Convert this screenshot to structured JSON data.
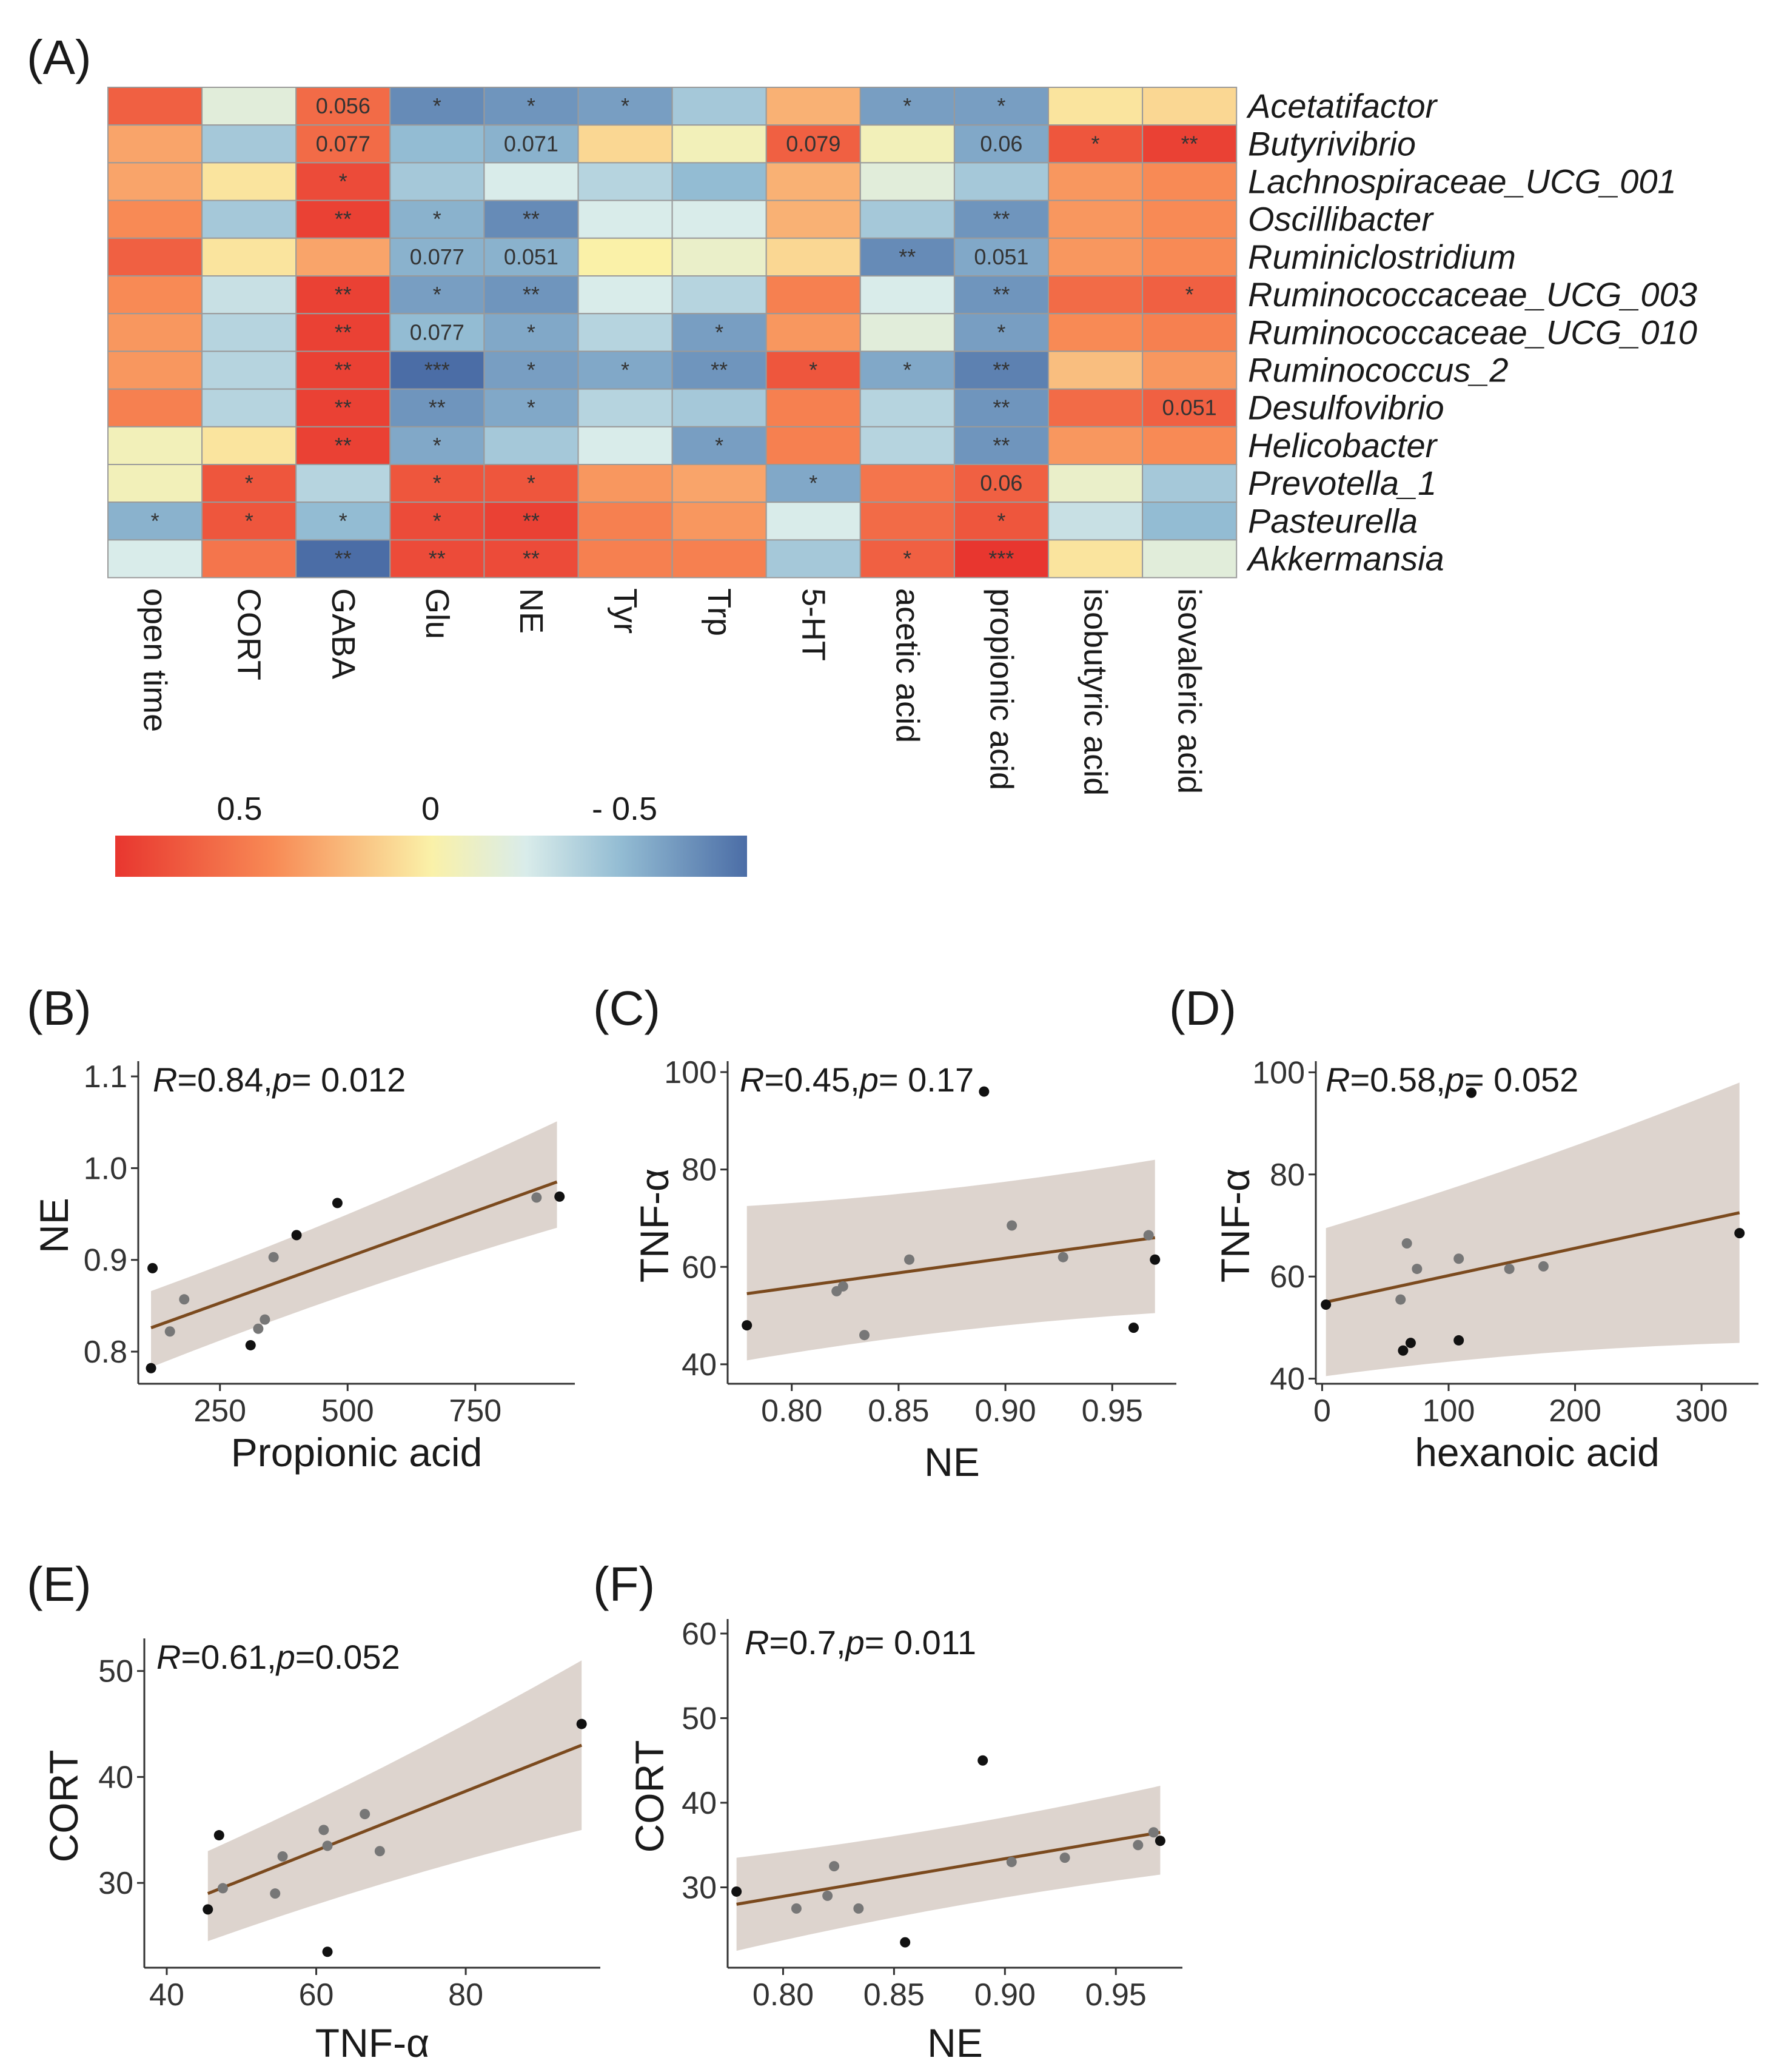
{
  "figure": {
    "colors": {
      "positive": "#e8362f",
      "neutral": "#faf1a8",
      "negative": "#4b6da6",
      "fit_line": "#7b4a1e",
      "ci_band": "#d9cfc9",
      "point_dark": "#111111",
      "point_grey": "#777777",
      "cell_border": "#9a9a9a"
    }
  },
  "chart_data": [
    {
      "panel": "(A)",
      "type": "heatmap",
      "rows": [
        "Acetatifactor",
        "Butyrivibrio",
        "Lachnospiraceae_UCG_001",
        "Oscillibacter",
        "Ruminiclostridium",
        "Ruminococcaceae_UCG_003",
        "Ruminococcaceae_UCG_010",
        "Ruminococcus_2",
        "Desulfovibrio",
        "Helicobacter",
        "Prevotella_1",
        "Pasteurella",
        "Akkermansia"
      ],
      "columns": [
        "open time",
        "CORT",
        "GABA",
        "Glu",
        "NE",
        "Tyr",
        "Trp",
        "5-HT",
        "acetic acid",
        "propionic acid",
        "isobutyric acid",
        "isovaleric acid"
      ],
      "values": [
        [
          0.6,
          -0.15,
          0.55,
          -0.65,
          -0.6,
          -0.55,
          -0.35,
          0.25,
          -0.55,
          -0.55,
          0.05,
          0.1
        ],
        [
          0.3,
          -0.35,
          0.55,
          -0.4,
          -0.45,
          0.1,
          -0.05,
          0.6,
          -0.05,
          -0.5,
          0.65,
          0.75
        ],
        [
          0.3,
          0.05,
          0.7,
          -0.35,
          -0.2,
          -0.3,
          -0.4,
          0.25,
          -0.15,
          -0.35,
          0.35,
          0.4
        ],
        [
          0.4,
          -0.35,
          0.75,
          -0.45,
          -0.65,
          -0.2,
          -0.2,
          0.25,
          -0.35,
          -0.6,
          0.35,
          0.4
        ],
        [
          0.6,
          0.05,
          0.3,
          -0.45,
          -0.45,
          0.0,
          -0.1,
          0.1,
          -0.65,
          -0.5,
          0.35,
          0.4
        ],
        [
          0.4,
          -0.25,
          0.75,
          -0.55,
          -0.6,
          -0.2,
          -0.3,
          0.45,
          -0.2,
          -0.6,
          0.55,
          0.6
        ],
        [
          0.35,
          -0.3,
          0.75,
          -0.4,
          -0.5,
          -0.3,
          -0.55,
          0.35,
          -0.15,
          -0.55,
          0.4,
          0.45
        ],
        [
          0.35,
          -0.3,
          0.75,
          -0.8,
          -0.55,
          -0.5,
          -0.6,
          0.65,
          -0.5,
          -0.7,
          0.2,
          0.35
        ],
        [
          0.45,
          -0.3,
          0.75,
          -0.6,
          -0.5,
          -0.3,
          -0.35,
          0.45,
          -0.3,
          -0.6,
          0.55,
          0.6
        ],
        [
          -0.05,
          0.05,
          0.75,
          -0.5,
          -0.35,
          -0.2,
          -0.55,
          0.45,
          -0.3,
          -0.6,
          0.35,
          0.4
        ],
        [
          -0.05,
          0.65,
          -0.3,
          0.65,
          0.65,
          0.35,
          0.3,
          -0.5,
          0.5,
          0.6,
          -0.1,
          -0.35
        ],
        [
          -0.45,
          0.65,
          -0.4,
          0.7,
          0.75,
          0.45,
          0.35,
          -0.2,
          0.55,
          0.65,
          -0.25,
          -0.4
        ],
        [
          -0.2,
          0.5,
          -0.8,
          0.7,
          0.7,
          0.45,
          0.45,
          -0.35,
          0.6,
          0.8,
          0.05,
          -0.15
        ]
      ],
      "annotations": [
        [
          "",
          "",
          "0.056",
          "*",
          "*",
          "*",
          "",
          "",
          "*",
          "*",
          "",
          ""
        ],
        [
          "",
          "",
          "0.077",
          "",
          "0.071",
          "",
          "",
          "0.079",
          "",
          "0.06",
          "*",
          "**"
        ],
        [
          "",
          "",
          "*",
          "",
          "",
          "",
          "",
          "",
          "",
          "",
          "",
          ""
        ],
        [
          "",
          "",
          "**",
          "*",
          "**",
          "",
          "",
          "",
          "",
          "**",
          "",
          ""
        ],
        [
          "",
          "",
          "",
          "0.077",
          "0.051",
          "",
          "",
          "",
          "**",
          "0.051",
          "",
          ""
        ],
        [
          "",
          "",
          "**",
          "*",
          "**",
          "",
          "",
          "",
          "",
          "**",
          "",
          "*"
        ],
        [
          "",
          "",
          "**",
          "0.077",
          "*",
          "",
          "*",
          "",
          "",
          "*",
          "",
          ""
        ],
        [
          "",
          "",
          "**",
          "***",
          "*",
          "*",
          "**",
          "*",
          "*",
          "**",
          "",
          ""
        ],
        [
          "",
          "",
          "**",
          "**",
          "*",
          "",
          "",
          "",
          "",
          "**",
          "",
          "0.051"
        ],
        [
          "",
          "",
          "**",
          "*",
          "",
          "",
          "*",
          "",
          "",
          "**",
          "",
          ""
        ],
        [
          "",
          "*",
          "",
          "*",
          "*",
          "",
          "",
          "*",
          "",
          "0.06",
          "",
          ""
        ],
        [
          "*",
          "*",
          "*",
          "*",
          "**",
          "",
          "",
          "",
          "",
          "*",
          "",
          ""
        ],
        [
          "",
          "",
          "**",
          "**",
          "**",
          "",
          "",
          "",
          "*",
          "***",
          "",
          ""
        ]
      ],
      "legend": {
        "ticks": [
          "0.5",
          "0",
          "- 0.5"
        ],
        "range": [
          0.8,
          -0.8
        ]
      }
    },
    {
      "panel": "(B)",
      "type": "scatter",
      "xlabel": "Propionic acid",
      "ylabel": "NE",
      "stat": {
        "r_label": "R",
        "r_value": "=0.84,",
        "p_label": "p",
        "p_value": "= 0.012"
      },
      "xlim": [
        90,
        945
      ],
      "ylim": [
        0.765,
        1.11
      ],
      "xticks": [
        250,
        500,
        750
      ],
      "yticks": [
        0.8,
        0.9,
        1.0,
        1.1
      ],
      "xtick_labels": [
        "250",
        "500",
        "750"
      ],
      "ytick_labels": [
        "0.8",
        "0.9",
        "1.0",
        "1.1"
      ],
      "fit": {
        "x": [
          115,
          910
        ],
        "y": [
          0.826,
          0.985
        ],
        "ci_low": [
          0.783,
          0.935
        ],
        "ci_high": [
          0.866,
          1.051
        ]
      },
      "points": [
        {
          "x": 115,
          "y": 0.782,
          "shade": "dark"
        },
        {
          "x": 118,
          "y": 0.891,
          "shade": "dark"
        },
        {
          "x": 152,
          "y": 0.822,
          "shade": "grey"
        },
        {
          "x": 180,
          "y": 0.857,
          "shade": "grey"
        },
        {
          "x": 310,
          "y": 0.807,
          "shade": "dark"
        },
        {
          "x": 325,
          "y": 0.825,
          "shade": "grey"
        },
        {
          "x": 338,
          "y": 0.835,
          "shade": "grey"
        },
        {
          "x": 355,
          "y": 0.903,
          "shade": "grey"
        },
        {
          "x": 400,
          "y": 0.927,
          "shade": "dark"
        },
        {
          "x": 480,
          "y": 0.962,
          "shade": "dark"
        },
        {
          "x": 870,
          "y": 0.968,
          "shade": "grey"
        },
        {
          "x": 915,
          "y": 0.969,
          "shade": "dark"
        }
      ]
    },
    {
      "panel": "(C)",
      "type": "scatter",
      "xlabel": "NE",
      "ylabel": "TNF-α",
      "stat": {
        "r_label": "R",
        "r_value": "=0.45,",
        "p_label": "p",
        "p_value": "= 0.17"
      },
      "xlim": [
        0.77,
        0.98
      ],
      "ylim": [
        36,
        101
      ],
      "xticks": [
        0.8,
        0.85,
        0.9,
        0.95
      ],
      "yticks": [
        40,
        60,
        80,
        100
      ],
      "xtick_labels": [
        "0.80",
        "0.85",
        "0.90",
        "0.95"
      ],
      "ytick_labels": [
        "40",
        "60",
        "80",
        "100"
      ],
      "fit": {
        "x": [
          0.779,
          0.97
        ],
        "y": [
          54.5,
          66
        ],
        "ci_low": [
          40.8,
          50.5
        ],
        "ci_high": [
          72.5,
          82
        ]
      },
      "points": [
        {
          "x": 0.779,
          "y": 48,
          "shade": "dark"
        },
        {
          "x": 0.821,
          "y": 55,
          "shade": "grey"
        },
        {
          "x": 0.824,
          "y": 56,
          "shade": "grey"
        },
        {
          "x": 0.834,
          "y": 46,
          "shade": "grey"
        },
        {
          "x": 0.855,
          "y": 61.5,
          "shade": "grey"
        },
        {
          "x": 0.89,
          "y": 96,
          "shade": "dark"
        },
        {
          "x": 0.903,
          "y": 68.5,
          "shade": "grey"
        },
        {
          "x": 0.927,
          "y": 62,
          "shade": "grey"
        },
        {
          "x": 0.96,
          "y": 47.5,
          "shade": "dark"
        },
        {
          "x": 0.967,
          "y": 66.5,
          "shade": "grey"
        },
        {
          "x": 0.97,
          "y": 61.5,
          "shade": "dark"
        }
      ]
    },
    {
      "panel": "(D)",
      "type": "scatter",
      "xlabel": "hexanoic acid",
      "ylabel": "TNF-α",
      "stat": {
        "r_label": "R",
        "r_value": "=0.58,",
        "p_label": "p",
        "p_value": "= 0.052"
      },
      "xlim": [
        -5,
        345
      ],
      "ylim": [
        39,
        101
      ],
      "xticks": [
        0,
        100,
        200,
        300
      ],
      "yticks": [
        40,
        60,
        80,
        100
      ],
      "xtick_labels": [
        "0",
        "100",
        "200",
        "300"
      ],
      "ytick_labels": [
        "40",
        "60",
        "80",
        "100"
      ],
      "fit": {
        "x": [
          3,
          330
        ],
        "y": [
          55,
          72.5
        ],
        "ci_low": [
          40.5,
          47
        ],
        "ci_high": [
          69.5,
          98
        ]
      },
      "points": [
        {
          "x": 3,
          "y": 54.5,
          "shade": "dark"
        },
        {
          "x": 62,
          "y": 55.5,
          "shade": "grey"
        },
        {
          "x": 64,
          "y": 45.5,
          "shade": "dark"
        },
        {
          "x": 67,
          "y": 66.5,
          "shade": "grey"
        },
        {
          "x": 70,
          "y": 47,
          "shade": "dark"
        },
        {
          "x": 75,
          "y": 61.5,
          "shade": "grey"
        },
        {
          "x": 108,
          "y": 63.5,
          "shade": "grey"
        },
        {
          "x": 108,
          "y": 47.5,
          "shade": "dark"
        },
        {
          "x": 118,
          "y": 96,
          "shade": "dark"
        },
        {
          "x": 148,
          "y": 61.5,
          "shade": "grey"
        },
        {
          "x": 175,
          "y": 62,
          "shade": "grey"
        },
        {
          "x": 330,
          "y": 68.5,
          "shade": "dark"
        }
      ]
    },
    {
      "panel": "(E)",
      "type": "scatter",
      "xlabel": "TNF-α",
      "ylabel": "CORT",
      "stat": {
        "r_label": "R",
        "r_value": "=0.61,",
        "p_label": "p",
        "p_value": "=0.052"
      },
      "xlim": [
        37,
        98
      ],
      "ylim": [
        22,
        52.5
      ],
      "xticks": [
        40,
        60,
        80
      ],
      "yticks": [
        30,
        40,
        50
      ],
      "xtick_labels": [
        "40",
        "60",
        "80"
      ],
      "ytick_labels": [
        "30",
        "40",
        "50"
      ],
      "fit": {
        "x": [
          45.5,
          95.5
        ],
        "y": [
          29,
          43
        ],
        "ci_low": [
          24.5,
          35
        ],
        "ci_high": [
          33,
          51
        ]
      },
      "points": [
        {
          "x": 45.5,
          "y": 27.5,
          "shade": "dark"
        },
        {
          "x": 47,
          "y": 34.5,
          "shade": "dark"
        },
        {
          "x": 47.5,
          "y": 29.5,
          "shade": "grey"
        },
        {
          "x": 54.5,
          "y": 29,
          "shade": "grey"
        },
        {
          "x": 55.5,
          "y": 32.5,
          "shade": "grey"
        },
        {
          "x": 61,
          "y": 35,
          "shade": "grey"
        },
        {
          "x": 61.5,
          "y": 33.5,
          "shade": "grey"
        },
        {
          "x": 61.5,
          "y": 23.5,
          "shade": "dark"
        },
        {
          "x": 66.5,
          "y": 36.5,
          "shade": "grey"
        },
        {
          "x": 68.5,
          "y": 33,
          "shade": "grey"
        },
        {
          "x": 95.5,
          "y": 45,
          "shade": "dark"
        }
      ]
    },
    {
      "panel": "(F)",
      "type": "scatter",
      "xlabel": "NE",
      "ylabel": "CORT",
      "stat": {
        "r_label": "R",
        "r_value": "=0.7,",
        "p_label": "p",
        "p_value": "= 0.011"
      },
      "xlim": [
        0.775,
        0.98
      ],
      "ylim": [
        20.5,
        61
      ],
      "xticks": [
        0.8,
        0.85,
        0.9,
        0.95
      ],
      "yticks": [
        30,
        40,
        50,
        60
      ],
      "xtick_labels": [
        "0.80",
        "0.85",
        "0.90",
        "0.95"
      ],
      "ytick_labels": [
        "30",
        "40",
        "50",
        "60"
      ],
      "fit": {
        "x": [
          0.779,
          0.97
        ],
        "y": [
          28,
          36.5
        ],
        "ci_low": [
          22.5,
          31.5
        ],
        "ci_high": [
          33.5,
          42
        ]
      },
      "points": [
        {
          "x": 0.779,
          "y": 29.5,
          "shade": "dark"
        },
        {
          "x": 0.806,
          "y": 27.5,
          "shade": "grey"
        },
        {
          "x": 0.82,
          "y": 29,
          "shade": "grey"
        },
        {
          "x": 0.823,
          "y": 32.5,
          "shade": "grey"
        },
        {
          "x": 0.834,
          "y": 27.5,
          "shade": "grey"
        },
        {
          "x": 0.855,
          "y": 23.5,
          "shade": "dark"
        },
        {
          "x": 0.89,
          "y": 45,
          "shade": "dark"
        },
        {
          "x": 0.903,
          "y": 33,
          "shade": "grey"
        },
        {
          "x": 0.927,
          "y": 33.5,
          "shade": "grey"
        },
        {
          "x": 0.96,
          "y": 35,
          "shade": "grey"
        },
        {
          "x": 0.967,
          "y": 36.5,
          "shade": "grey"
        },
        {
          "x": 0.97,
          "y": 35.5,
          "shade": "dark"
        }
      ]
    }
  ]
}
